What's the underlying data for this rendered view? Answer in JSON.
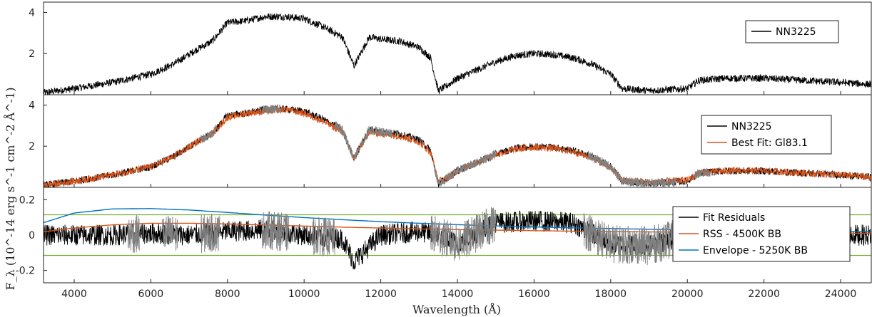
{
  "colors": {
    "observed": "#000000",
    "fit": "#d95319",
    "masked": "#808080",
    "envelope": "#0072bd",
    "threshold": "#77ac30"
  },
  "axes": {
    "xlabel": "Wavelength (Å)",
    "ylabel": "F_λ (10^-14 erg s^-1 cm^-2 Å^-1)",
    "xlim": [
      3200,
      24800
    ],
    "xticks": [
      "4000",
      "6000",
      "8000",
      "10000",
      "12000",
      "14000",
      "16000",
      "18000",
      "20000",
      "22000",
      "24000"
    ]
  },
  "chart_data": [
    {
      "type": "line",
      "panel": "top",
      "ylim": [
        0,
        4.5
      ],
      "yticks": [
        "2",
        "4"
      ],
      "legend_position": "top-right",
      "series": [
        {
          "name": "NN3225",
          "color": "#000000",
          "x": [
            3200,
            4000,
            5000,
            6000,
            6600,
            7200,
            7600,
            8000,
            8500,
            9000,
            9500,
            10000,
            10500,
            11000,
            11300,
            11700,
            12000,
            12500,
            13000,
            13300,
            13500,
            13700,
            14000,
            14500,
            15000,
            15500,
            16000,
            16500,
            17000,
            17500,
            18000,
            18300,
            19000,
            19500,
            20000,
            20300,
            21000,
            22000,
            23000,
            24000,
            24800
          ],
          "y": [
            0.1,
            0.3,
            0.6,
            1.0,
            1.5,
            2.2,
            2.6,
            3.5,
            3.6,
            3.8,
            3.8,
            3.7,
            3.3,
            2.8,
            1.4,
            2.8,
            2.7,
            2.6,
            2.3,
            1.8,
            0.2,
            0.4,
            0.8,
            1.2,
            1.6,
            1.9,
            2.0,
            1.95,
            1.8,
            1.5,
            1.0,
            0.3,
            0.2,
            0.25,
            0.3,
            0.7,
            0.8,
            0.8,
            0.7,
            0.6,
            0.5
          ]
        }
      ]
    },
    {
      "type": "line",
      "panel": "middle",
      "ylim": [
        0,
        4.5
      ],
      "yticks": [
        "2",
        "4"
      ],
      "legend_position": "top-right",
      "series": [
        {
          "name": "NN3225",
          "color": "#000000",
          "x": [
            3200,
            4000,
            5000,
            6000,
            6600,
            7200,
            7600,
            8000,
            8500,
            9000,
            9500,
            10000,
            10500,
            11000,
            11300,
            11700,
            12000,
            12500,
            13000,
            13300,
            13500,
            13700,
            14000,
            14500,
            15000,
            15500,
            16000,
            16500,
            17000,
            17500,
            18000,
            18300,
            19000,
            19500,
            20000,
            20300,
            21000,
            22000,
            23000,
            24000,
            24800
          ],
          "y": [
            0.1,
            0.3,
            0.6,
            1.0,
            1.5,
            2.2,
            2.6,
            3.5,
            3.6,
            3.8,
            3.8,
            3.7,
            3.3,
            2.8,
            1.4,
            2.8,
            2.7,
            2.6,
            2.3,
            1.8,
            0.2,
            0.4,
            0.8,
            1.2,
            1.6,
            1.9,
            2.0,
            1.95,
            1.8,
            1.5,
            1.0,
            0.3,
            0.2,
            0.25,
            0.3,
            0.7,
            0.8,
            0.8,
            0.7,
            0.6,
            0.5
          ]
        },
        {
          "name": "Best Fit: Gl83.1",
          "color": "#d95319",
          "x": [
            3200,
            4000,
            5000,
            6000,
            6600,
            7200,
            7600,
            8000,
            8500,
            9000,
            9500,
            10000,
            10500,
            11000,
            11300,
            11700,
            12000,
            12500,
            13000,
            13300,
            13500,
            13700,
            14000,
            14500,
            15000,
            15500,
            16000,
            16500,
            17000,
            17500,
            18000,
            18300,
            19000,
            19500,
            20000,
            20300,
            21000,
            22000,
            23000,
            24000,
            24800
          ],
          "y": [
            0.1,
            0.3,
            0.6,
            1.0,
            1.5,
            2.2,
            2.6,
            3.4,
            3.6,
            3.7,
            3.8,
            3.6,
            3.2,
            2.7,
            1.4,
            2.7,
            2.6,
            2.5,
            2.2,
            1.7,
            0.3,
            0.4,
            0.8,
            1.2,
            1.6,
            1.85,
            1.95,
            1.9,
            1.75,
            1.45,
            0.95,
            0.35,
            0.25,
            0.3,
            0.35,
            0.7,
            0.8,
            0.8,
            0.7,
            0.6,
            0.5
          ]
        }
      ],
      "masked_ranges": [
        [
          7300,
          7700
        ],
        [
          8900,
          9400
        ],
        [
          10800,
          12300
        ],
        [
          13400,
          15000
        ],
        [
          17400,
          19700
        ],
        [
          20200,
          20600
        ]
      ]
    },
    {
      "type": "line",
      "panel": "bottom",
      "ylim": [
        -0.27,
        0.27
      ],
      "yticks": [
        "-0.2",
        "0",
        "0.2"
      ],
      "legend_position": "bottom-right",
      "thresholds": [
        0.115,
        -0.115
      ],
      "series": [
        {
          "name": "Fit Residuals",
          "color": "#000000",
          "x": [
            3200,
            4000,
            5000,
            6000,
            7000,
            8000,
            9000,
            10000,
            11000,
            11300,
            12000,
            13000,
            13500,
            14000,
            15000,
            16000,
            17000,
            18000,
            19000,
            20000,
            21000,
            22000,
            23000,
            24000,
            24800
          ],
          "y": [
            0.0,
            0.0,
            0.0,
            0.01,
            0.0,
            0.02,
            0.03,
            0.0,
            -0.02,
            -0.15,
            0.0,
            0.02,
            0.0,
            -0.05,
            0.07,
            0.08,
            0.07,
            -0.05,
            -0.06,
            0.0,
            0.01,
            0.0,
            0.0,
            0.0,
            0.0
          ]
        },
        {
          "name": "RSS - 4500K BB",
          "color": "#d95319",
          "x": [
            3200,
            4000,
            5000,
            6000,
            7000,
            8000,
            9000,
            10000,
            11000,
            12000,
            13000,
            14000,
            15000,
            16000,
            17000,
            18000,
            19000,
            20000,
            21000,
            22000,
            23000,
            24000,
            24800
          ],
          "y": [
            0.018,
            0.04,
            0.058,
            0.067,
            0.067,
            0.063,
            0.057,
            0.051,
            0.045,
            0.04,
            0.035,
            0.031,
            0.028,
            0.025,
            0.022,
            0.02,
            0.018,
            0.016,
            0.015,
            0.013,
            0.012,
            0.011,
            0.01
          ]
        },
        {
          "name": "Envelope - 5250K BB",
          "color": "#0072bd",
          "x": [
            3200,
            4000,
            5000,
            6000,
            7000,
            8000,
            9000,
            10000,
            11000,
            12000,
            13000,
            14000,
            15000,
            16000,
            17000,
            18000,
            19000,
            20000,
            21000,
            22000,
            23000,
            24000,
            24800
          ],
          "y": [
            0.07,
            0.125,
            0.148,
            0.15,
            0.142,
            0.128,
            0.113,
            0.099,
            0.087,
            0.076,
            0.067,
            0.059,
            0.052,
            0.046,
            0.041,
            0.037,
            0.033,
            0.03,
            0.027,
            0.025,
            0.022,
            0.02,
            0.019
          ]
        }
      ],
      "masked_ranges": [
        [
          5400,
          5700
        ],
        [
          6300,
          6700
        ],
        [
          7300,
          7800
        ],
        [
          8900,
          9600
        ],
        [
          10200,
          10800
        ],
        [
          13300,
          15000
        ],
        [
          17300,
          19800
        ]
      ]
    }
  ]
}
